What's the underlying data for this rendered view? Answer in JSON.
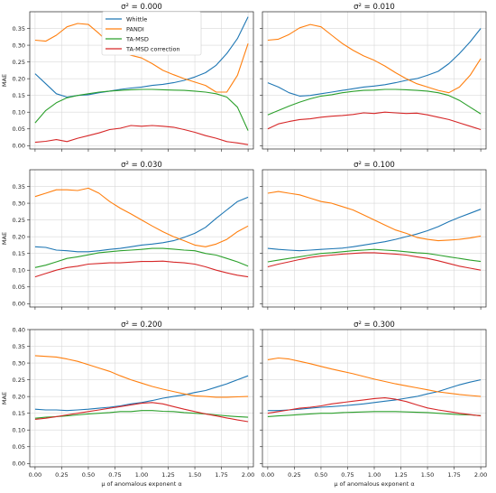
{
  "colors": {
    "Whittle": "#1f77b4",
    "PANDI": "#ff7f0e",
    "TA-MSD": "#2ca02c",
    "TA-MSD correction": "#d62728",
    "grid": "#d9d9d9",
    "axis": "#222222"
  },
  "legend": {
    "placement": "top-left",
    "entries": [
      "Whittle",
      "PANDI",
      "TA-MSD",
      "TA-MSD correction"
    ]
  },
  "chart_data": [
    {
      "type": "line",
      "title": "σ² = 0.000",
      "xlabel": "",
      "ylabel": "MAE",
      "xlim": [
        -0.05,
        2.05
      ],
      "ylim": [
        -0.01,
        0.4
      ],
      "xticks": [
        "0.00",
        "0.25",
        "0.50",
        "0.75",
        "1.00",
        "1.25",
        "1.50",
        "1.75",
        "2.00"
      ],
      "yticks": [
        "0.00",
        "0.05",
        "0.10",
        "0.15",
        "0.20",
        "0.25",
        "0.30",
        "0.35"
      ],
      "xtick_labels_visible": false,
      "grid": true,
      "x": [
        0.0,
        0.1,
        0.2,
        0.3,
        0.4,
        0.5,
        0.6,
        0.7,
        0.8,
        0.9,
        1.0,
        1.1,
        1.2,
        1.3,
        1.4,
        1.5,
        1.6,
        1.7,
        1.8,
        1.9,
        2.0
      ],
      "series": [
        {
          "name": "Whittle",
          "values": [
            0.215,
            0.185,
            0.155,
            0.145,
            0.15,
            0.152,
            0.158,
            0.163,
            0.168,
            0.172,
            0.175,
            0.18,
            0.183,
            0.188,
            0.195,
            0.205,
            0.218,
            0.24,
            0.275,
            0.32,
            0.385
          ]
        },
        {
          "name": "PANDI",
          "values": [
            0.315,
            0.312,
            0.33,
            0.355,
            0.365,
            0.362,
            0.335,
            0.305,
            0.285,
            0.27,
            0.262,
            0.245,
            0.225,
            0.212,
            0.2,
            0.19,
            0.18,
            0.16,
            0.16,
            0.21,
            0.305
          ]
        },
        {
          "name": "TA-MSD",
          "values": [
            0.068,
            0.105,
            0.128,
            0.143,
            0.15,
            0.155,
            0.16,
            0.163,
            0.165,
            0.167,
            0.168,
            0.168,
            0.167,
            0.166,
            0.165,
            0.163,
            0.16,
            0.155,
            0.145,
            0.115,
            0.045
          ]
        },
        {
          "name": "TA-MSD correction",
          "values": [
            0.01,
            0.013,
            0.018,
            0.012,
            0.022,
            0.03,
            0.038,
            0.048,
            0.052,
            0.06,
            0.058,
            0.06,
            0.058,
            0.055,
            0.048,
            0.04,
            0.03,
            0.022,
            0.012,
            0.008,
            0.003
          ]
        }
      ]
    },
    {
      "type": "line",
      "title": "σ² = 0.010",
      "xlabel": "",
      "ylabel": "",
      "xlim": [
        -0.05,
        2.05
      ],
      "ylim": [
        -0.01,
        0.4
      ],
      "xticks": [
        "0.00",
        "0.25",
        "0.50",
        "0.75",
        "1.00",
        "1.25",
        "1.50",
        "1.75",
        "2.00"
      ],
      "yticks": [
        "0.00",
        "0.05",
        "0.10",
        "0.15",
        "0.20",
        "0.25",
        "0.30",
        "0.35"
      ],
      "xtick_labels_visible": false,
      "ytick_labels_visible": false,
      "grid": true,
      "x": [
        0.0,
        0.1,
        0.2,
        0.3,
        0.4,
        0.5,
        0.6,
        0.7,
        0.8,
        0.9,
        1.0,
        1.1,
        1.2,
        1.3,
        1.4,
        1.5,
        1.6,
        1.7,
        1.8,
        1.9,
        2.0
      ],
      "series": [
        {
          "name": "Whittle",
          "values": [
            0.188,
            0.175,
            0.158,
            0.148,
            0.15,
            0.155,
            0.16,
            0.165,
            0.17,
            0.175,
            0.178,
            0.182,
            0.188,
            0.195,
            0.2,
            0.21,
            0.222,
            0.245,
            0.275,
            0.31,
            0.35
          ]
        },
        {
          "name": "PANDI",
          "values": [
            0.315,
            0.318,
            0.332,
            0.352,
            0.362,
            0.355,
            0.33,
            0.305,
            0.285,
            0.268,
            0.255,
            0.238,
            0.218,
            0.2,
            0.185,
            0.175,
            0.165,
            0.158,
            0.175,
            0.21,
            0.26
          ]
        },
        {
          "name": "TA-MSD",
          "values": [
            0.092,
            0.105,
            0.118,
            0.13,
            0.14,
            0.148,
            0.152,
            0.158,
            0.162,
            0.165,
            0.166,
            0.168,
            0.168,
            0.167,
            0.165,
            0.163,
            0.158,
            0.15,
            0.135,
            0.115,
            0.095
          ]
        },
        {
          "name": "TA-MSD correction",
          "values": [
            0.05,
            0.065,
            0.072,
            0.078,
            0.08,
            0.085,
            0.088,
            0.09,
            0.093,
            0.098,
            0.096,
            0.1,
            0.098,
            0.096,
            0.097,
            0.092,
            0.085,
            0.078,
            0.068,
            0.058,
            0.048
          ]
        }
      ]
    },
    {
      "type": "line",
      "title": "σ² = 0.030",
      "xlabel": "",
      "ylabel": "MAE",
      "xlim": [
        -0.05,
        2.05
      ],
      "ylim": [
        -0.01,
        0.4
      ],
      "xticks": [
        "0.00",
        "0.25",
        "0.50",
        "0.75",
        "1.00",
        "1.25",
        "1.50",
        "1.75",
        "2.00"
      ],
      "yticks": [
        "0.00",
        "0.05",
        "0.10",
        "0.15",
        "0.20",
        "0.25",
        "0.30",
        "0.35"
      ],
      "xtick_labels_visible": false,
      "grid": true,
      "x": [
        0.0,
        0.1,
        0.2,
        0.3,
        0.4,
        0.5,
        0.6,
        0.7,
        0.8,
        0.9,
        1.0,
        1.1,
        1.2,
        1.3,
        1.4,
        1.5,
        1.6,
        1.7,
        1.8,
        1.9,
        2.0
      ],
      "series": [
        {
          "name": "Whittle",
          "values": [
            0.17,
            0.168,
            0.16,
            0.158,
            0.155,
            0.155,
            0.158,
            0.162,
            0.165,
            0.17,
            0.175,
            0.178,
            0.182,
            0.188,
            0.198,
            0.21,
            0.228,
            0.255,
            0.28,
            0.305,
            0.318
          ]
        },
        {
          "name": "PANDI",
          "values": [
            0.32,
            0.33,
            0.34,
            0.34,
            0.338,
            0.345,
            0.33,
            0.305,
            0.285,
            0.268,
            0.25,
            0.232,
            0.215,
            0.2,
            0.188,
            0.175,
            0.17,
            0.178,
            0.192,
            0.215,
            0.232
          ]
        },
        {
          "name": "TA-MSD",
          "values": [
            0.108,
            0.115,
            0.125,
            0.135,
            0.14,
            0.146,
            0.152,
            0.155,
            0.158,
            0.16,
            0.162,
            0.165,
            0.165,
            0.163,
            0.16,
            0.158,
            0.15,
            0.145,
            0.135,
            0.125,
            0.112
          ]
        },
        {
          "name": "TA-MSD correction",
          "values": [
            0.08,
            0.09,
            0.1,
            0.108,
            0.112,
            0.118,
            0.12,
            0.122,
            0.122,
            0.124,
            0.126,
            0.126,
            0.127,
            0.124,
            0.122,
            0.118,
            0.11,
            0.1,
            0.092,
            0.085,
            0.08
          ]
        }
      ]
    },
    {
      "type": "line",
      "title": "σ² = 0.100",
      "xlabel": "",
      "ylabel": "",
      "xlim": [
        -0.05,
        2.05
      ],
      "ylim": [
        -0.01,
        0.4
      ],
      "xticks": [
        "0.00",
        "0.25",
        "0.50",
        "0.75",
        "1.00",
        "1.25",
        "1.50",
        "1.75",
        "2.00"
      ],
      "yticks": [
        "0.00",
        "0.05",
        "0.10",
        "0.15",
        "0.20",
        "0.25",
        "0.30",
        "0.35"
      ],
      "xtick_labels_visible": false,
      "ytick_labels_visible": false,
      "grid": true,
      "x": [
        0.0,
        0.1,
        0.2,
        0.3,
        0.4,
        0.5,
        0.6,
        0.7,
        0.8,
        0.9,
        1.0,
        1.1,
        1.2,
        1.3,
        1.4,
        1.5,
        1.6,
        1.7,
        1.8,
        1.9,
        2.0
      ],
      "series": [
        {
          "name": "Whittle",
          "values": [
            0.165,
            0.162,
            0.16,
            0.158,
            0.16,
            0.162,
            0.164,
            0.166,
            0.17,
            0.175,
            0.18,
            0.185,
            0.192,
            0.2,
            0.208,
            0.218,
            0.23,
            0.245,
            0.258,
            0.27,
            0.282
          ]
        },
        {
          "name": "PANDI",
          "values": [
            0.33,
            0.335,
            0.33,
            0.325,
            0.315,
            0.305,
            0.3,
            0.29,
            0.28,
            0.265,
            0.25,
            0.235,
            0.22,
            0.21,
            0.198,
            0.192,
            0.188,
            0.19,
            0.192,
            0.196,
            0.202
          ]
        },
        {
          "name": "TA-MSD",
          "values": [
            0.125,
            0.13,
            0.135,
            0.14,
            0.145,
            0.15,
            0.152,
            0.155,
            0.158,
            0.16,
            0.162,
            0.16,
            0.158,
            0.155,
            0.152,
            0.15,
            0.145,
            0.14,
            0.135,
            0.13,
            0.126
          ]
        },
        {
          "name": "TA-MSD correction",
          "values": [
            0.11,
            0.118,
            0.125,
            0.132,
            0.138,
            0.142,
            0.145,
            0.148,
            0.15,
            0.152,
            0.152,
            0.15,
            0.148,
            0.145,
            0.14,
            0.135,
            0.128,
            0.12,
            0.112,
            0.106,
            0.1
          ]
        }
      ]
    },
    {
      "type": "line",
      "title": "σ² = 0.200",
      "xlabel": "μ of anomalous exponent α",
      "ylabel": "MAE",
      "xlim": [
        -0.05,
        2.05
      ],
      "ylim": [
        -0.01,
        0.4
      ],
      "xticks": [
        "0.00",
        "0.25",
        "0.50",
        "0.75",
        "1.00",
        "1.25",
        "1.50",
        "1.75",
        "2.00"
      ],
      "yticks": [
        "0.00",
        "0.05",
        "0.10",
        "0.15",
        "0.20",
        "0.25",
        "0.30",
        "0.35",
        "0.40"
      ],
      "grid": true,
      "x": [
        0.0,
        0.1,
        0.2,
        0.3,
        0.4,
        0.5,
        0.6,
        0.7,
        0.8,
        0.9,
        1.0,
        1.1,
        1.2,
        1.3,
        1.4,
        1.5,
        1.6,
        1.7,
        1.8,
        1.9,
        2.0
      ],
      "series": [
        {
          "name": "Whittle",
          "values": [
            0.162,
            0.16,
            0.16,
            0.158,
            0.16,
            0.162,
            0.165,
            0.168,
            0.172,
            0.178,
            0.182,
            0.188,
            0.195,
            0.2,
            0.205,
            0.212,
            0.218,
            0.228,
            0.238,
            0.25,
            0.262
          ]
        },
        {
          "name": "PANDI",
          "values": [
            0.322,
            0.32,
            0.318,
            0.312,
            0.305,
            0.295,
            0.285,
            0.275,
            0.262,
            0.25,
            0.24,
            0.23,
            0.222,
            0.215,
            0.208,
            0.202,
            0.2,
            0.198,
            0.198,
            0.199,
            0.2
          ]
        },
        {
          "name": "TA-MSD",
          "values": [
            0.135,
            0.138,
            0.14,
            0.142,
            0.145,
            0.148,
            0.15,
            0.152,
            0.155,
            0.155,
            0.158,
            0.158,
            0.156,
            0.155,
            0.152,
            0.15,
            0.148,
            0.145,
            0.142,
            0.14,
            0.138
          ]
        },
        {
          "name": "TA-MSD correction",
          "values": [
            0.132,
            0.135,
            0.14,
            0.145,
            0.15,
            0.155,
            0.16,
            0.165,
            0.17,
            0.175,
            0.18,
            0.182,
            0.178,
            0.17,
            0.162,
            0.155,
            0.148,
            0.142,
            0.136,
            0.13,
            0.125
          ]
        }
      ]
    },
    {
      "type": "line",
      "title": "σ² = 0.300",
      "xlabel": "μ of anomalous exponent α",
      "ylabel": "",
      "xlim": [
        -0.05,
        2.05
      ],
      "ylim": [
        -0.01,
        0.4
      ],
      "xticks": [
        "0.00",
        "0.25",
        "0.50",
        "0.75",
        "1.00",
        "1.25",
        "1.50",
        "1.75",
        "2.00"
      ],
      "yticks": [
        "0.00",
        "0.05",
        "0.10",
        "0.15",
        "0.20",
        "0.25",
        "0.30",
        "0.35",
        "0.40"
      ],
      "ytick_labels_visible": false,
      "grid": true,
      "x": [
        0.0,
        0.1,
        0.2,
        0.3,
        0.4,
        0.5,
        0.6,
        0.7,
        0.8,
        0.9,
        1.0,
        1.1,
        1.2,
        1.3,
        1.4,
        1.5,
        1.6,
        1.7,
        1.8,
        1.9,
        2.0
      ],
      "series": [
        {
          "name": "Whittle",
          "values": [
            0.158,
            0.158,
            0.16,
            0.162,
            0.165,
            0.168,
            0.17,
            0.172,
            0.175,
            0.178,
            0.182,
            0.186,
            0.19,
            0.195,
            0.2,
            0.208,
            0.215,
            0.225,
            0.235,
            0.243,
            0.25
          ]
        },
        {
          "name": "PANDI",
          "values": [
            0.31,
            0.315,
            0.312,
            0.305,
            0.298,
            0.29,
            0.282,
            0.275,
            0.268,
            0.26,
            0.252,
            0.245,
            0.238,
            0.232,
            0.226,
            0.22,
            0.214,
            0.21,
            0.206,
            0.203,
            0.2
          ]
        },
        {
          "name": "TA-MSD",
          "values": [
            0.14,
            0.142,
            0.144,
            0.146,
            0.148,
            0.15,
            0.15,
            0.152,
            0.153,
            0.154,
            0.155,
            0.155,
            0.155,
            0.154,
            0.153,
            0.152,
            0.15,
            0.148,
            0.146,
            0.145,
            0.143
          ]
        },
        {
          "name": "TA-MSD correction",
          "values": [
            0.15,
            0.155,
            0.16,
            0.165,
            0.168,
            0.172,
            0.178,
            0.182,
            0.186,
            0.19,
            0.194,
            0.196,
            0.192,
            0.185,
            0.175,
            0.166,
            0.16,
            0.155,
            0.15,
            0.146,
            0.142
          ]
        }
      ]
    }
  ]
}
